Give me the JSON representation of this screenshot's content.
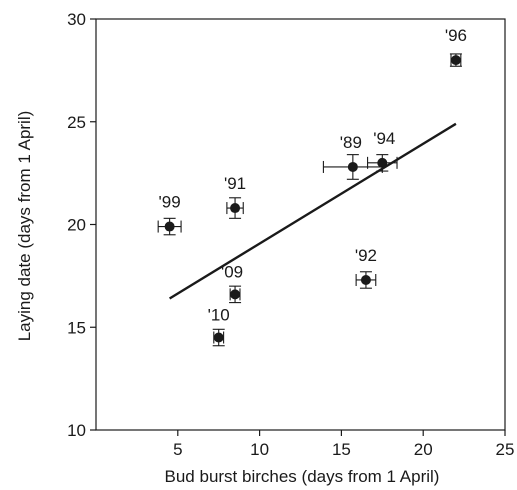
{
  "chart_data": {
    "type": "scatter",
    "xlabel": "Bud burst birches (days from 1 April)",
    "ylabel": "Laying date (days from 1 April)",
    "xlim": [
      0,
      25
    ],
    "ylim": [
      10,
      30
    ],
    "xticks": [
      "5",
      "10",
      "15",
      "20",
      "25"
    ],
    "yticks": [
      "10",
      "15",
      "20",
      "25",
      "30"
    ],
    "grid": false,
    "points": [
      {
        "label": "'96",
        "x": 22.0,
        "y": 28.0,
        "xerr": 0.3,
        "yerr": 0.3
      },
      {
        "label": "'89",
        "x": 15.7,
        "y": 22.8,
        "xerr": 1.8,
        "yerr": 0.6
      },
      {
        "label": "'94",
        "x": 17.5,
        "y": 23.0,
        "xerr": 0.9,
        "yerr": 0.4
      },
      {
        "label": "'91",
        "x": 8.5,
        "y": 20.8,
        "xerr": 0.5,
        "yerr": 0.5
      },
      {
        "label": "'99",
        "x": 4.5,
        "y": 19.9,
        "xerr": 0.7,
        "yerr": 0.4
      },
      {
        "label": "'92",
        "x": 16.5,
        "y": 17.3,
        "xerr": 0.6,
        "yerr": 0.4
      },
      {
        "label": "'09",
        "x": 8.5,
        "y": 16.6,
        "xerr": 0.3,
        "yerr": 0.4
      },
      {
        "label": "'10",
        "x": 7.5,
        "y": 14.5,
        "xerr": 0.3,
        "yerr": 0.4
      }
    ],
    "fit_line": {
      "x": [
        4.5,
        22.0
      ],
      "y": [
        16.4,
        24.9
      ]
    }
  }
}
